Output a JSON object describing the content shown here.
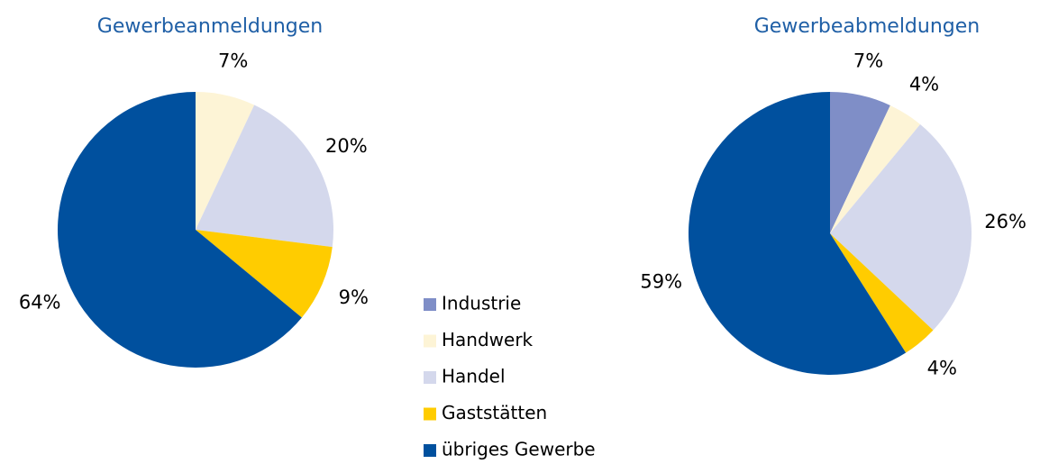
{
  "chart_data": [
    {
      "type": "pie",
      "title": "Gewerbeanmeldungen",
      "categories": [
        "Handwerk",
        "Handel",
        "Gaststätten",
        "übriges Gewerbe"
      ],
      "values": [
        7,
        20,
        9,
        64
      ],
      "value_labels": [
        "7%",
        "20%",
        "9%",
        "64%"
      ],
      "colors": [
        "#fdf4d6",
        "#d4d8ec",
        "#ffcc00",
        "#00509e"
      ]
    },
    {
      "type": "pie",
      "title": "Gewerbeabmeldungen",
      "categories": [
        "Industrie",
        "Handwerk",
        "Handel",
        "Gaststätten",
        "übriges Gewerbe"
      ],
      "values": [
        7,
        4,
        26,
        4,
        59
      ],
      "value_labels": [
        "7%",
        "4%",
        "26%",
        "4%",
        "59%"
      ],
      "colors": [
        "#7f8ec7",
        "#fdf4d6",
        "#d4d8ec",
        "#ffcc00",
        "#00509e"
      ],
      "legend": "center"
    }
  ]
}
